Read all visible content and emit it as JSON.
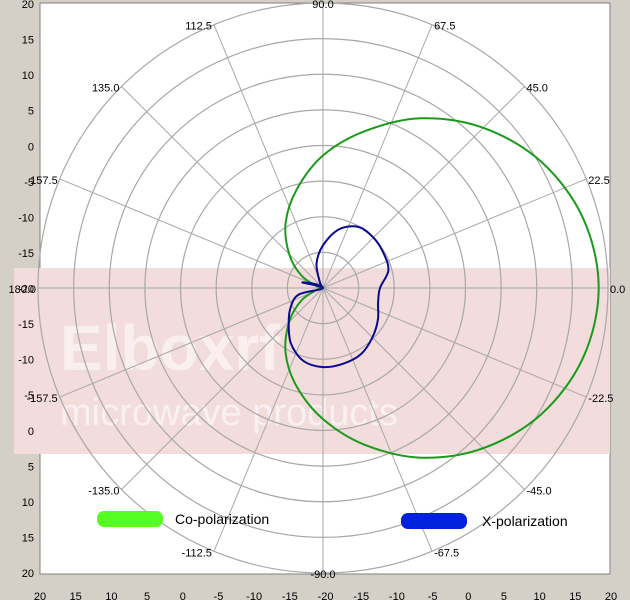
{
  "colors": {
    "background": "#d4d0c8",
    "plot_background": "#ffffff",
    "grid": "#a8a8a8",
    "co_polarization": "#1a9a1a",
    "x_polarization": "#0a0a8c",
    "legend_co": "#55ff22",
    "legend_x": "#0022dd",
    "watermark_band": "#f2dcdc"
  },
  "watermark": {
    "main": "Elboxrf",
    "sub": "microwave products"
  },
  "legend": [
    {
      "name": "Co-polarization",
      "swatch_color": "#55ff22"
    },
    {
      "name": "X-polarization",
      "swatch_color": "#0022dd"
    }
  ],
  "chart_data": {
    "type": "polar",
    "r_range": [
      -20,
      20
    ],
    "r_step": 5,
    "y_tick_labels": [
      "20",
      "15",
      "10",
      "5",
      "0",
      "-5",
      "-10",
      "-15",
      "-20",
      "-15",
      "-10",
      "-5",
      "0",
      "5",
      "10",
      "15",
      "20"
    ],
    "x_tick_labels": [
      "20",
      "15",
      "10",
      "5",
      "0",
      "-5",
      "-10",
      "-15",
      "-20",
      "-15",
      "-10",
      "-5",
      "0",
      "5",
      "10",
      "15",
      "20"
    ],
    "angle_labels": [
      "0.0",
      "22.5",
      "45.0",
      "67.5",
      "90.0",
      "112.5",
      "135.0",
      "157.5",
      "180.0",
      "-157.5",
      "-135.0",
      "-112.5",
      "-90.0",
      "-67.5",
      "-45.0",
      "-22.5"
    ],
    "grid": true,
    "legend_position": "bottom",
    "series": [
      {
        "name": "Co-polarization",
        "theta_deg": [
          0,
          15,
          30,
          45,
          60,
          75,
          90,
          105,
          120,
          135,
          150,
          165,
          180,
          195,
          210,
          225,
          240,
          255,
          270,
          285,
          300,
          315,
          330,
          345
        ],
        "values": [
          18.7,
          17.8,
          15.4,
          11.8,
          7.5,
          2.8,
          -1.4,
          -5.7,
          -9.5,
          -13.3,
          -16.5,
          -19.2,
          -20.0,
          -19.2,
          -16.5,
          -13.3,
          -9.5,
          -5.7,
          -1.6,
          2.8,
          7.5,
          11.8,
          15.4,
          17.8
        ]
      },
      {
        "name": "X-polarization",
        "theta_deg": [
          0,
          15,
          30,
          45,
          60,
          75,
          90,
          105,
          120,
          135,
          150,
          165,
          180,
          195,
          210,
          225,
          240,
          255,
          270,
          285,
          300,
          315,
          330,
          345
        ],
        "values": [
          -12.0,
          -10.5,
          -10.2,
          -10.0,
          -10.1,
          -11.5,
          -14.0,
          -16.5,
          -19.2,
          -20.0,
          -19.0,
          -17.0,
          -20.0,
          -16.5,
          -14.8,
          -13.2,
          -11.0,
          -9.4,
          -8.9,
          -9.0,
          -9.3,
          -10.2,
          -11.1,
          -12.0
        ]
      }
    ]
  }
}
